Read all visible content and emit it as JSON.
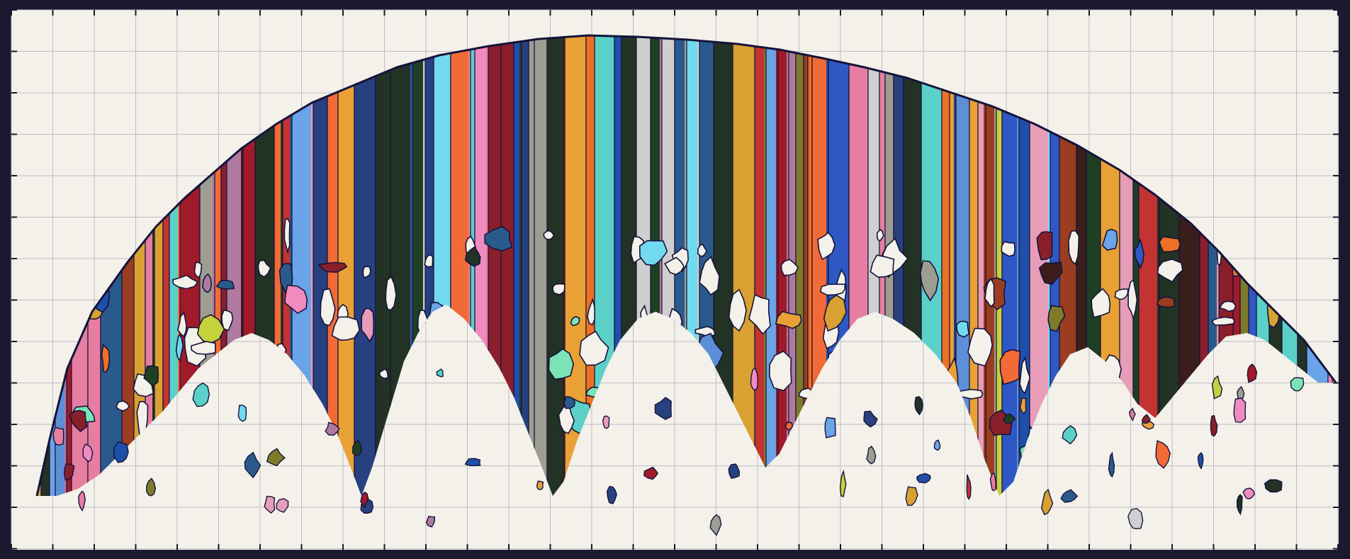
{
  "artwork": {
    "signature_text": "",
    "colors": {
      "frame": "#1a1930",
      "paper": "#f3f1ea",
      "grid": "#bdbcc4",
      "outline": "#15133a",
      "stripe_palette": [
        "#27407f",
        "#8a1f2c",
        "#5bd0c9",
        "#1f3f24",
        "#e67ea1",
        "#c6d13e",
        "#f26a36",
        "#5d8fd6",
        "#1f4faa",
        "#3b1e1c",
        "#ee7024",
        "#9e9d92",
        "#223225",
        "#a01a2a",
        "#7e7a2a",
        "#d8a131",
        "#2f58c4",
        "#e79db8",
        "#b07aa0",
        "#71d9f0",
        "#e9a136",
        "#c23331",
        "#7ce3b7",
        "#f08bc0",
        "#6aa3e8",
        "#cfcfcf",
        "#9b3d20",
        "#2a5a8c"
      ]
    }
  }
}
